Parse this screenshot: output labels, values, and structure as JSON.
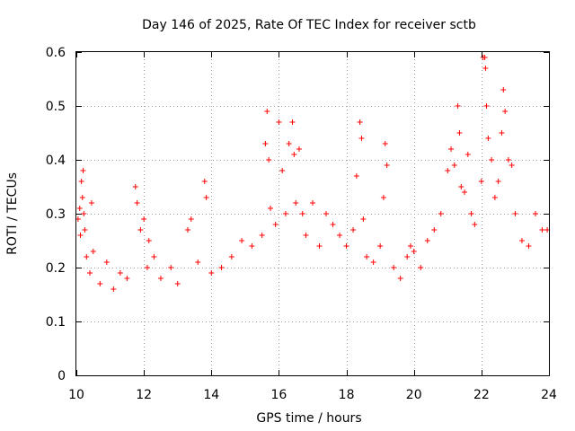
{
  "chart_data": {
    "type": "scatter",
    "title": "Day 146 of 2025, Rate Of TEC Index for receiver sctb",
    "xlabel": "GPS time / hours",
    "ylabel": "ROTI / TECUs",
    "xlim": [
      10,
      24
    ],
    "ylim": [
      0,
      0.6
    ],
    "xticks": [
      10,
      12,
      14,
      16,
      18,
      20,
      22,
      24
    ],
    "xtick_labels": [
      "10",
      "12",
      "14",
      "16",
      "18",
      "20",
      "22",
      "24"
    ],
    "yticks": [
      0,
      0.1,
      0.2,
      0.3,
      0.4,
      0.5,
      0.6
    ],
    "ytick_labels": [
      "0",
      "0.1",
      "0.2",
      "0.3",
      "0.4",
      "0.5",
      "0.6"
    ],
    "grid": true,
    "marker": "+",
    "series": [
      {
        "name": "ROTI",
        "color": "#ff0000",
        "points": [
          [
            10.05,
            0.29
          ],
          [
            10.1,
            0.31
          ],
          [
            10.12,
            0.26
          ],
          [
            10.15,
            0.36
          ],
          [
            10.18,
            0.33
          ],
          [
            10.2,
            0.38
          ],
          [
            10.22,
            0.3
          ],
          [
            10.25,
            0.27
          ],
          [
            10.3,
            0.22
          ],
          [
            10.4,
            0.19
          ],
          [
            10.45,
            0.32
          ],
          [
            10.5,
            0.23
          ],
          [
            10.7,
            0.17
          ],
          [
            10.9,
            0.21
          ],
          [
            11.1,
            0.16
          ],
          [
            11.3,
            0.19
          ],
          [
            11.5,
            0.18
          ],
          [
            11.75,
            0.35
          ],
          [
            11.8,
            0.32
          ],
          [
            11.9,
            0.27
          ],
          [
            12.0,
            0.29
          ],
          [
            12.1,
            0.2
          ],
          [
            12.15,
            0.25
          ],
          [
            12.3,
            0.22
          ],
          [
            12.5,
            0.18
          ],
          [
            12.8,
            0.2
          ],
          [
            13.0,
            0.17
          ],
          [
            13.3,
            0.27
          ],
          [
            13.4,
            0.29
          ],
          [
            13.6,
            0.21
          ],
          [
            13.8,
            0.36
          ],
          [
            13.85,
            0.33
          ],
          [
            14.0,
            0.19
          ],
          [
            14.3,
            0.2
          ],
          [
            14.6,
            0.22
          ],
          [
            14.9,
            0.25
          ],
          [
            15.2,
            0.24
          ],
          [
            15.5,
            0.26
          ],
          [
            15.6,
            0.43
          ],
          [
            15.65,
            0.49
          ],
          [
            15.7,
            0.4
          ],
          [
            15.75,
            0.31
          ],
          [
            15.9,
            0.28
          ],
          [
            16.0,
            0.47
          ],
          [
            16.1,
            0.38
          ],
          [
            16.2,
            0.3
          ],
          [
            16.3,
            0.43
          ],
          [
            16.4,
            0.47
          ],
          [
            16.45,
            0.41
          ],
          [
            16.5,
            0.32
          ],
          [
            16.6,
            0.42
          ],
          [
            16.7,
            0.3
          ],
          [
            16.8,
            0.26
          ],
          [
            17.0,
            0.32
          ],
          [
            17.2,
            0.24
          ],
          [
            17.4,
            0.3
          ],
          [
            17.6,
            0.28
          ],
          [
            17.8,
            0.26
          ],
          [
            18.0,
            0.24
          ],
          [
            18.2,
            0.27
          ],
          [
            18.3,
            0.37
          ],
          [
            18.4,
            0.47
          ],
          [
            18.45,
            0.44
          ],
          [
            18.5,
            0.29
          ],
          [
            18.6,
            0.22
          ],
          [
            18.8,
            0.21
          ],
          [
            19.0,
            0.24
          ],
          [
            19.1,
            0.33
          ],
          [
            19.15,
            0.43
          ],
          [
            19.2,
            0.39
          ],
          [
            19.4,
            0.2
          ],
          [
            19.6,
            0.18
          ],
          [
            19.8,
            0.22
          ],
          [
            19.9,
            0.24
          ],
          [
            20.0,
            0.23
          ],
          [
            20.2,
            0.2
          ],
          [
            20.4,
            0.25
          ],
          [
            20.6,
            0.27
          ],
          [
            20.8,
            0.3
          ],
          [
            21.0,
            0.38
          ],
          [
            21.1,
            0.42
          ],
          [
            21.2,
            0.39
          ],
          [
            21.3,
            0.5
          ],
          [
            21.35,
            0.45
          ],
          [
            21.4,
            0.35
          ],
          [
            21.5,
            0.34
          ],
          [
            21.6,
            0.41
          ],
          [
            21.7,
            0.3
          ],
          [
            21.8,
            0.28
          ],
          [
            22.0,
            0.36
          ],
          [
            22.05,
            0.59
          ],
          [
            22.1,
            0.59
          ],
          [
            22.12,
            0.57
          ],
          [
            22.15,
            0.5
          ],
          [
            22.2,
            0.44
          ],
          [
            22.3,
            0.4
          ],
          [
            22.4,
            0.33
          ],
          [
            22.5,
            0.36
          ],
          [
            22.6,
            0.45
          ],
          [
            22.65,
            0.53
          ],
          [
            22.7,
            0.49
          ],
          [
            22.8,
            0.4
          ],
          [
            22.9,
            0.39
          ],
          [
            23.0,
            0.3
          ],
          [
            23.2,
            0.25
          ],
          [
            23.4,
            0.24
          ],
          [
            23.6,
            0.3
          ],
          [
            23.8,
            0.27
          ],
          [
            23.95,
            0.27
          ]
        ]
      }
    ]
  }
}
